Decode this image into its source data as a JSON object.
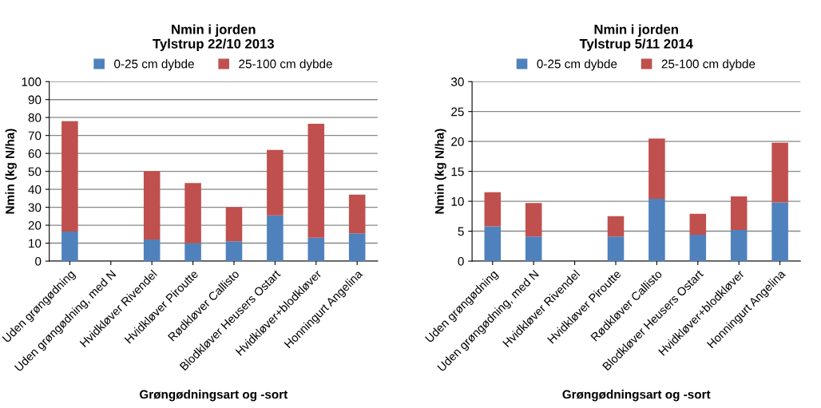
{
  "chart_data": [
    {
      "type": "bar",
      "title": "Nmin i jorden\nTylstrup 22/10 2013",
      "xlabel": "Grøngødningsart og -sort",
      "ylabel": "Nmin (kg N/ha)",
      "stacked": true,
      "legend": "top",
      "grid": "y",
      "categories": [
        "Uden grøngødning",
        "Uden grøngødning, med N",
        "Hvidkløver Rivendel",
        "Hvidkløver Piroutte",
        "Rødkløver Callisto",
        "Blodkløver Heusers Ostart",
        "Hvidkløver+blodkløver",
        "Honningurt Angelina"
      ],
      "ylim": [
        0,
        100
      ],
      "yticks": [
        0,
        10,
        20,
        30,
        40,
        50,
        60,
        70,
        80,
        90,
        100
      ],
      "series": [
        {
          "name": "0-25 cm dybde",
          "color": "#4f81bd",
          "values": [
            16.5,
            null,
            12,
            10,
            11,
            25.5,
            13,
            15.5
          ]
        },
        {
          "name": "25-100 cm dybde",
          "color": "#c0504d",
          "values": [
            61.5,
            null,
            38,
            33.5,
            19,
            36.5,
            63.5,
            21.5
          ]
        }
      ]
    },
    {
      "type": "bar",
      "title": "Nmin i jorden\nTylstrup 5/11 2014",
      "xlabel": "Grøngødningsart og -sort",
      "ylabel": "Nmin (kg N/ha)",
      "stacked": true,
      "legend": "top",
      "grid": "y",
      "categories": [
        "Uden grøngødning",
        "Uden grøngødning, med N",
        "Hvidkløver Rivendel",
        "Hvidkløver Piroutte",
        "Rødkløver Callisto",
        "Blodkløver Heusers Ostart",
        "Hvidkløver+blodkløver",
        "Honningurt Angelina"
      ],
      "ylim": [
        0,
        30
      ],
      "yticks": [
        0,
        5,
        10,
        15,
        20,
        25,
        30
      ],
      "series": [
        {
          "name": "0-25 cm dybde",
          "color": "#4f81bd",
          "values": [
            5.8,
            4.1,
            null,
            4.1,
            10.4,
            4.4,
            5.2,
            9.8
          ]
        },
        {
          "name": "25-100 cm dybde",
          "color": "#c0504d",
          "values": [
            5.7,
            5.6,
            null,
            3.4,
            10.1,
            3.5,
            5.6,
            10.0
          ]
        }
      ]
    }
  ]
}
